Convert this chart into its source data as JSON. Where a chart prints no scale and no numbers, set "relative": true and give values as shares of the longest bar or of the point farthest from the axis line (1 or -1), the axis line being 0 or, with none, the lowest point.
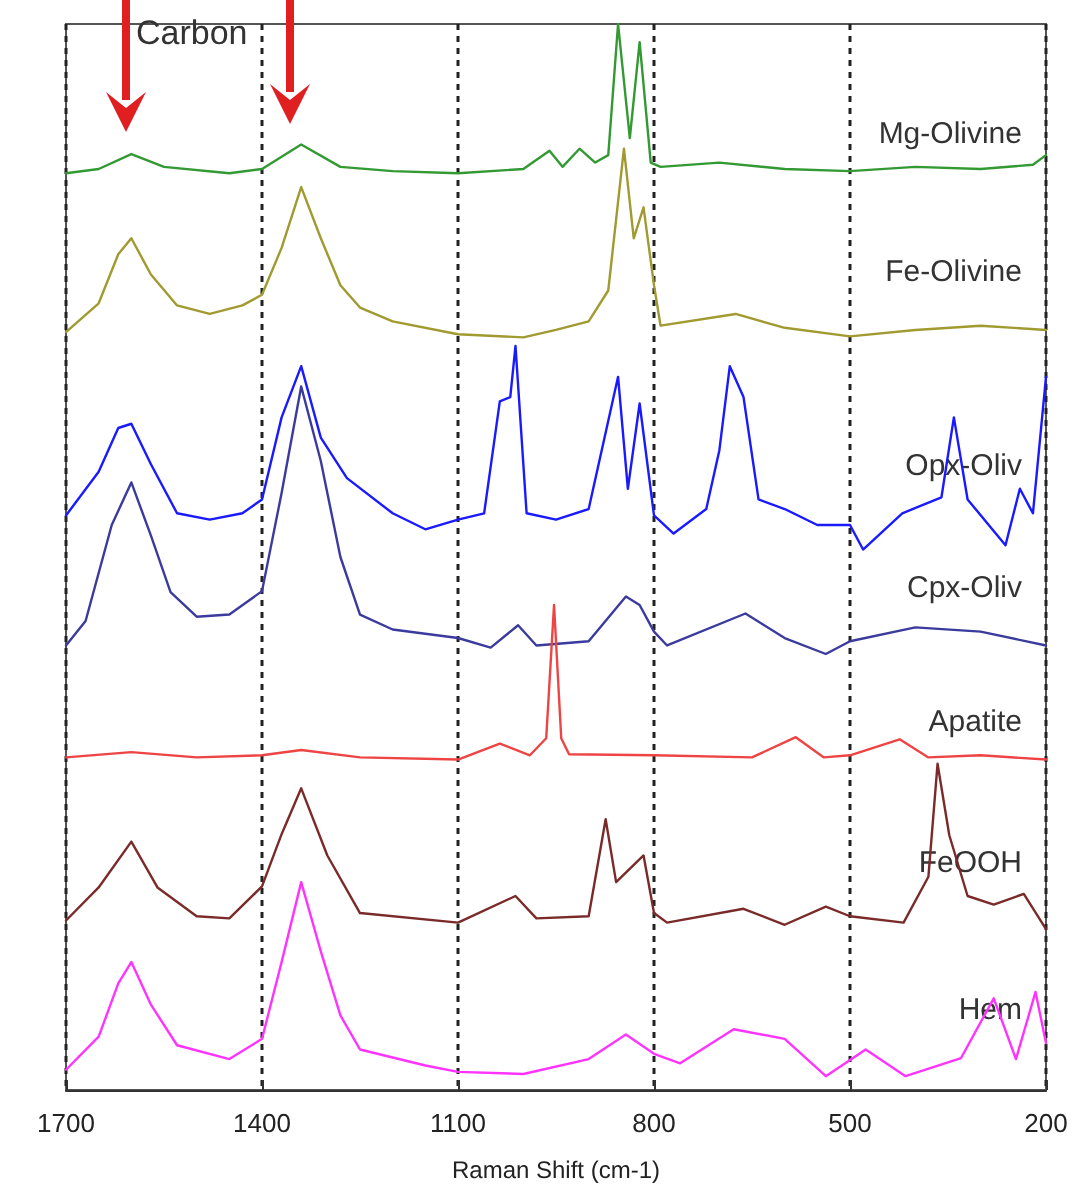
{
  "chart_data": {
    "type": "line",
    "relative": true,
    "xlabel": "Raman Shift (cm-1)",
    "xlim": [
      1700,
      200
    ],
    "xticks": [
      1700,
      1400,
      1100,
      800,
      500,
      200
    ],
    "grid": "x",
    "legend": false,
    "tick_labels": "x",
    "marker": "none",
    "line_style": "solid",
    "annotations": [
      "Carbon"
    ],
    "series": [
      {
        "name": "Mg-Olivine",
        "color": "#339933",
        "x": [
          1700,
          1650,
          1600,
          1550,
          1450,
          1400,
          1340,
          1280,
          1200,
          1100,
          1000,
          960,
          940,
          914,
          890,
          870,
          855,
          837,
          822,
          805,
          790,
          700,
          600,
          500,
          400,
          300,
          220,
          200
        ],
        "values": [
          0.86,
          0.864,
          0.878,
          0.866,
          0.86,
          0.864,
          0.887,
          0.866,
          0.862,
          0.86,
          0.864,
          0.881,
          0.866,
          0.883,
          0.87,
          0.877,
          1,
          0.893,
          0.983,
          0.87,
          0.866,
          0.87,
          0.864,
          0.862,
          0.866,
          0.864,
          0.868,
          0.877
        ]
      },
      {
        "name": "Fe-Olivine",
        "color": "#a09a30",
        "x": [
          1700,
          1650,
          1620,
          1600,
          1570,
          1530,
          1480,
          1430,
          1400,
          1370,
          1340,
          1310,
          1280,
          1250,
          1200,
          1100,
          1000,
          950,
          900,
          870,
          846,
          831,
          816,
          800,
          790,
          675,
          600,
          500,
          400,
          300,
          200
        ],
        "values": [
          0.711,
          0.738,
          0.784,
          0.799,
          0.765,
          0.736,
          0.728,
          0.736,
          0.746,
          0.79,
          0.847,
          0.799,
          0.755,
          0.734,
          0.721,
          0.709,
          0.706,
          0.713,
          0.721,
          0.75,
          0.883,
          0.799,
          0.828,
          0.755,
          0.717,
          0.728,
          0.715,
          0.707,
          0.713,
          0.717,
          0.713
        ]
      },
      {
        "name": "Opx-Oliv",
        "color": "#1a1aff",
        "x": [
          1700,
          1650,
          1620,
          1600,
          1570,
          1530,
          1480,
          1430,
          1400,
          1370,
          1340,
          1310,
          1270,
          1200,
          1150,
          1100,
          1060,
          1036,
          1020,
          1012,
          995,
          950,
          900,
          855,
          840,
          822,
          800,
          770,
          720,
          700,
          684,
          663,
          640,
          600,
          550,
          500,
          480,
          420,
          360,
          341,
          320,
          262,
          240,
          220,
          200
        ],
        "values": [
          0.539,
          0.58,
          0.621,
          0.625,
          0.587,
          0.541,
          0.535,
          0.541,
          0.554,
          0.631,
          0.679,
          0.612,
          0.574,
          0.541,
          0.526,
          0.535,
          0.541,
          0.646,
          0.65,
          0.698,
          0.541,
          0.535,
          0.545,
          0.669,
          0.564,
          0.644,
          0.539,
          0.522,
          0.545,
          0.6,
          0.679,
          0.65,
          0.554,
          0.545,
          0.53,
          0.53,
          0.507,
          0.541,
          0.556,
          0.631,
          0.554,
          0.511,
          0.564,
          0.541,
          0.669
        ]
      },
      {
        "name": "Cpx-Oliv",
        "color": "#3b3b9e",
        "x": [
          1700,
          1670,
          1630,
          1600,
          1570,
          1540,
          1500,
          1450,
          1400,
          1370,
          1340,
          1310,
          1280,
          1250,
          1200,
          1100,
          1050,
          1008,
          980,
          900,
          843,
          822,
          800,
          780,
          660,
          600,
          537,
          500,
          400,
          300,
          200
        ],
        "values": [
          0.417,
          0.44,
          0.53,
          0.57,
          0.52,
          0.467,
          0.444,
          0.446,
          0.468,
          0.56,
          0.66,
          0.59,
          0.5,
          0.446,
          0.432,
          0.424,
          0.415,
          0.436,
          0.417,
          0.421,
          0.463,
          0.455,
          0.43,
          0.417,
          0.447,
          0.424,
          0.409,
          0.421,
          0.434,
          0.43,
          0.417
        ]
      },
      {
        "name": "Apatite",
        "color": "#ee4444",
        "x": [
          1700,
          1600,
          1500,
          1400,
          1340,
          1250,
          1100,
          1036,
          990,
          965,
          953,
          942,
          930,
          800,
          650,
          583,
          540,
          500,
          424,
          380,
          300,
          200
        ],
        "values": [
          0.312,
          0.317,
          0.312,
          0.314,
          0.319,
          0.312,
          0.31,
          0.325,
          0.314,
          0.33,
          0.455,
          0.33,
          0.315,
          0.314,
          0.312,
          0.331,
          0.312,
          0.314,
          0.329,
          0.312,
          0.314,
          0.31
        ]
      },
      {
        "name": "FeOOH",
        "color": "#7b2a2a",
        "x": [
          1700,
          1650,
          1600,
          1560,
          1500,
          1450,
          1400,
          1370,
          1340,
          1300,
          1250,
          1100,
          1012,
          980,
          900,
          874,
          858,
          816,
          800,
          780,
          663,
          600,
          537,
          500,
          418,
          380,
          366,
          348,
          320,
          280,
          234,
          200
        ],
        "values": [
          0.159,
          0.19,
          0.233,
          0.19,
          0.163,
          0.161,
          0.191,
          0.24,
          0.283,
          0.22,
          0.166,
          0.157,
          0.182,
          0.161,
          0.163,
          0.254,
          0.195,
          0.22,
          0.166,
          0.157,
          0.17,
          0.155,
          0.172,
          0.163,
          0.157,
          0.2,
          0.306,
          0.239,
          0.182,
          0.174,
          0.184,
          0.151
        ]
      },
      {
        "name": "Hem",
        "color": "#ff33ff",
        "x": [
          1700,
          1650,
          1620,
          1600,
          1570,
          1530,
          1450,
          1400,
          1370,
          1340,
          1310,
          1280,
          1250,
          1150,
          1100,
          1000,
          900,
          843,
          800,
          760,
          678,
          600,
          537,
          476,
          415,
          330,
          280,
          246,
          216,
          200
        ],
        "values": [
          0.019,
          0.05,
          0.1,
          0.12,
          0.08,
          0.042,
          0.029,
          0.048,
          0.12,
          0.195,
          0.13,
          0.07,
          0.038,
          0.023,
          0.017,
          0.015,
          0.029,
          0.052,
          0.034,
          0.025,
          0.057,
          0.048,
          0.013,
          0.038,
          0.013,
          0.03,
          0.086,
          0.029,
          0.092,
          0.044
        ]
      }
    ]
  }
}
